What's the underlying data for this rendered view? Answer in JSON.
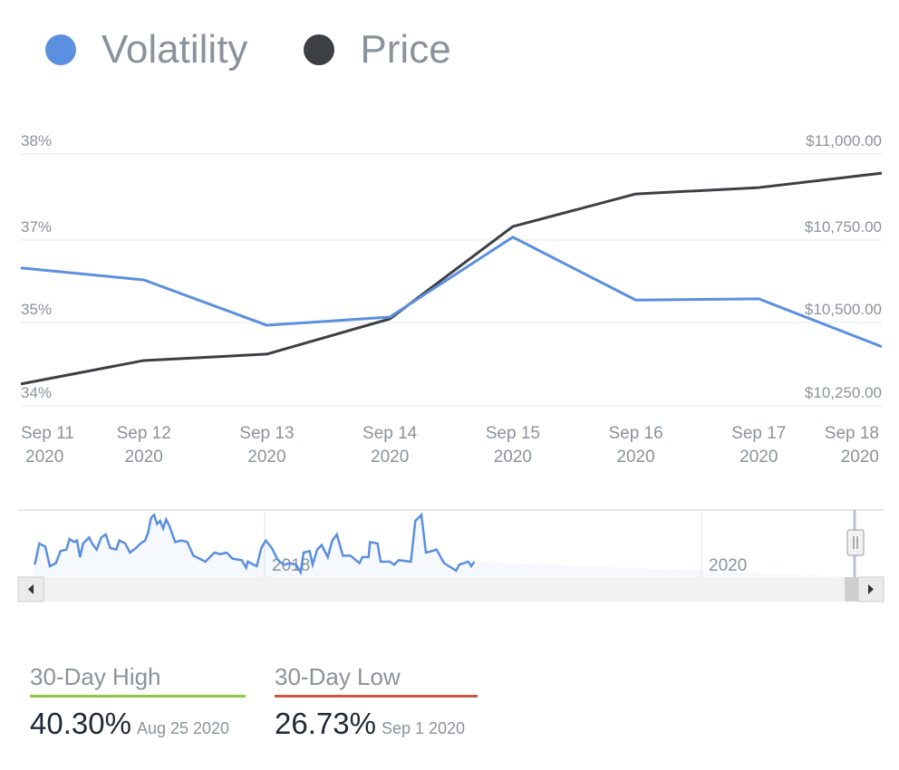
{
  "legend": [
    {
      "label": "Volatility",
      "color": "#5b8fdf"
    },
    {
      "label": "Price",
      "color": "#3c3f44"
    }
  ],
  "chart_data": {
    "type": "line",
    "categories": [
      "Sep 11 2020",
      "Sep 12 2020",
      "Sep 13 2020",
      "Sep 14 2020",
      "Sep 15 2020",
      "Sep 16 2020",
      "Sep 17 2020",
      "Sep 18 2020"
    ],
    "x_tick_labels": [
      [
        "Sep 11",
        "2020"
      ],
      [
        "Sep 12",
        "2020"
      ],
      [
        "Sep 13",
        "2020"
      ],
      [
        "Sep 14",
        "2020"
      ],
      [
        "Sep 15",
        "2020"
      ],
      [
        "Sep 16",
        "2020"
      ],
      [
        "Sep 17",
        "2020"
      ],
      [
        "Sep 18",
        "2020"
      ]
    ],
    "series": [
      {
        "name": "Volatility",
        "axis": "left",
        "color": "#5b8fdf",
        "values": [
          36.19,
          36.0,
          35.28,
          35.41,
          36.68,
          35.68,
          35.7,
          34.94
        ]
      },
      {
        "name": "Price",
        "axis": "right",
        "color": "#3c3f44",
        "values": [
          10315,
          10385,
          10404,
          10509,
          10784,
          10881,
          10900,
          10943
        ]
      }
    ],
    "left_axis": {
      "ticks": [
        "38%",
        "37%",
        "35%",
        "34%"
      ],
      "range": [
        34,
        38
      ]
    },
    "right_axis": {
      "ticks": [
        "$11,000.00",
        "$10,750.00",
        "$10,500.00",
        "$10,250.00"
      ],
      "range": [
        10250,
        11000
      ]
    },
    "grid": true,
    "legend_position": "top-left",
    "navigator": {
      "labels": [
        "2018",
        "2020"
      ]
    }
  },
  "stats": [
    {
      "label": "30-Day High",
      "value": "40.30%",
      "date": "Aug 25 2020",
      "color": "#8dc63f"
    },
    {
      "label": "30-Day Low",
      "value": "26.73%",
      "date": "Sep 1 2020",
      "color": "#d0533f"
    }
  ]
}
